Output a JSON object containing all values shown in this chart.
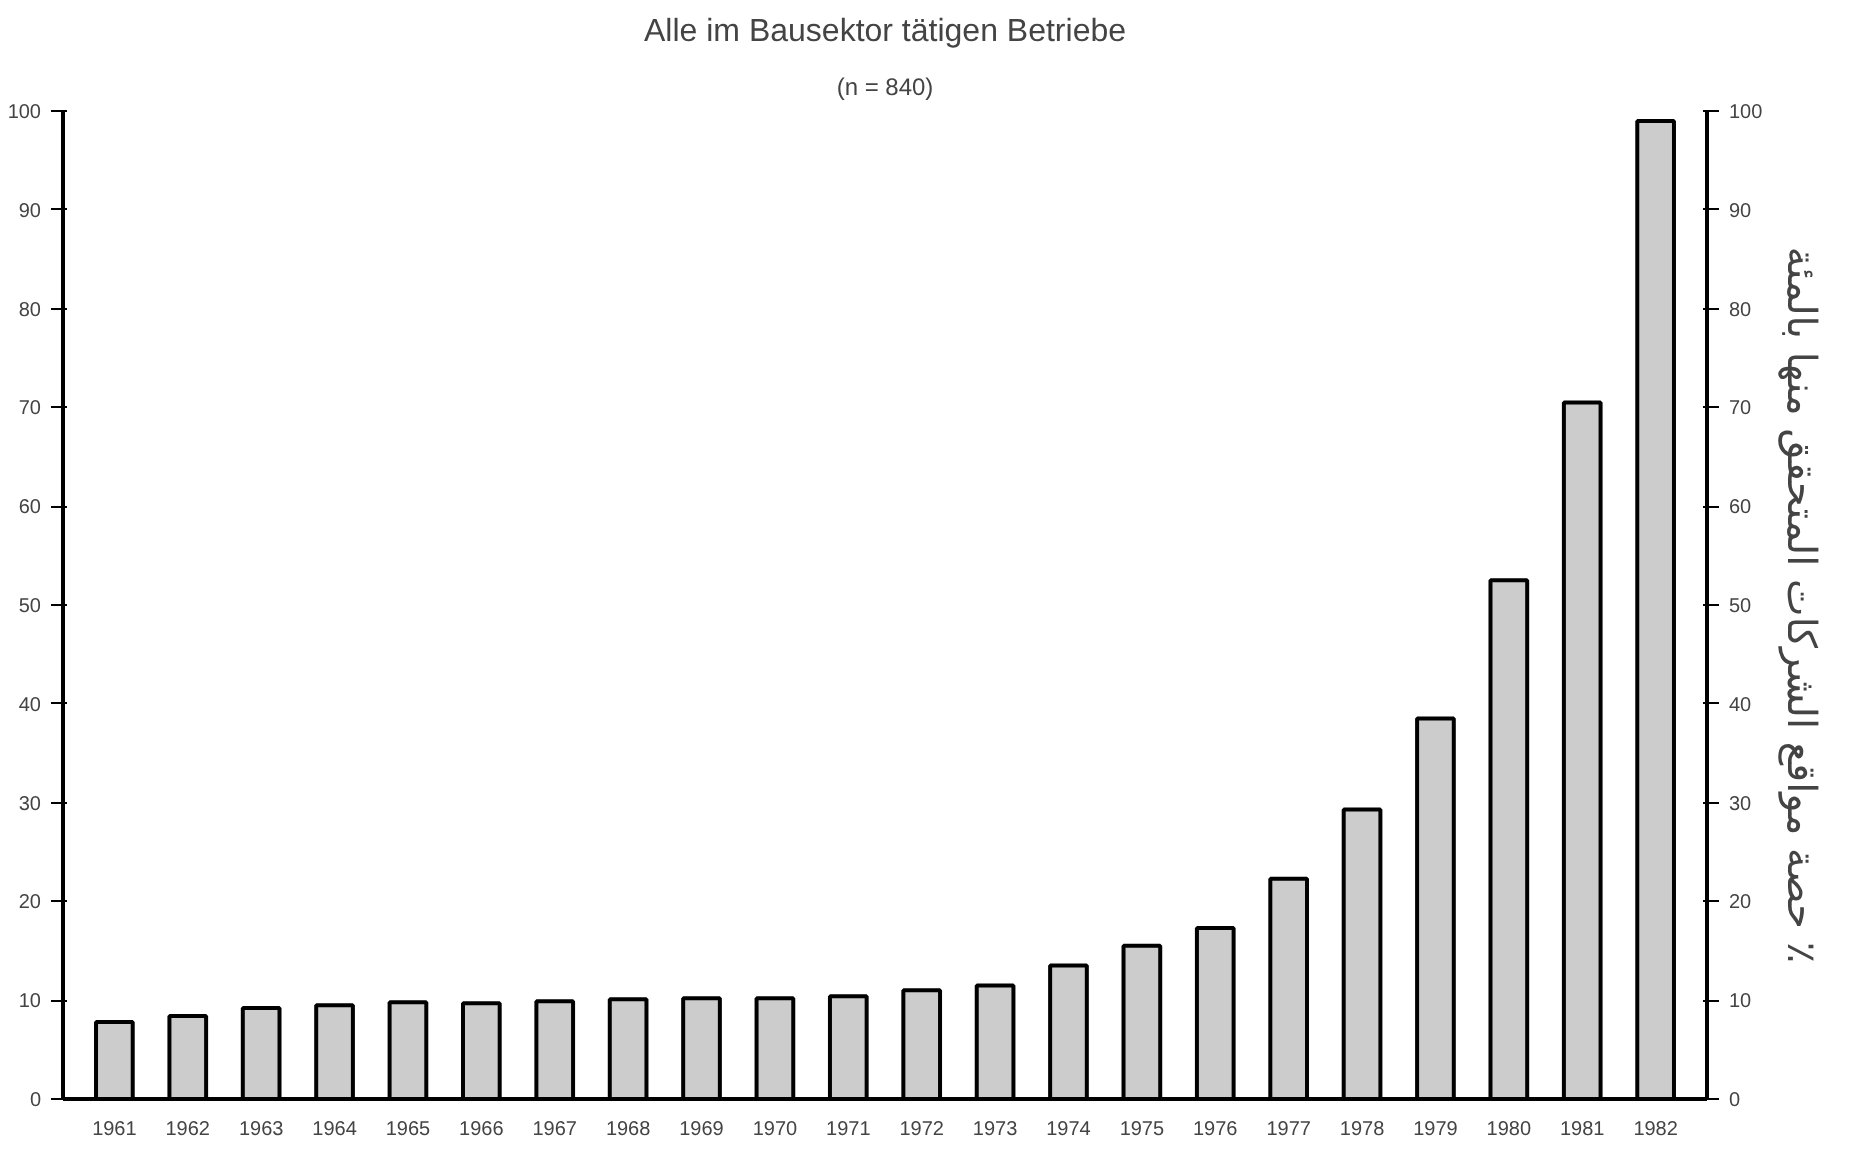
{
  "chart_data": {
    "type": "bar",
    "title": "Alle im Bausektor tätigen Betriebe",
    "subtitle": "(n = 840)",
    "y2label": "حصة مواقع الشركات المتحقق منها بالمئة ٪",
    "categories": [
      "1961",
      "1962",
      "1963",
      "1964",
      "1965",
      "1966",
      "1967",
      "1968",
      "1969",
      "1970",
      "1971",
      "1972",
      "1973",
      "1974",
      "1975",
      "1976",
      "1977",
      "1978",
      "1979",
      "1980",
      "1981",
      "1982"
    ],
    "values": [
      7.8,
      8.4,
      9.2,
      9.5,
      9.8,
      9.7,
      9.9,
      10.1,
      10.2,
      10.2,
      10.4,
      11,
      11.5,
      13.5,
      15.5,
      17.3,
      22.3,
      29.3,
      38.5,
      52.5,
      70.5,
      99
    ],
    "color": "#cccccc",
    "ylim": [
      0,
      100
    ],
    "yticks": [
      0,
      10,
      20,
      30,
      40,
      50,
      60,
      70,
      80,
      90,
      100
    ],
    "y2lim": [
      0,
      100
    ],
    "y2ticks": [
      0,
      10,
      20,
      30,
      40,
      50,
      60,
      70,
      80,
      90,
      100
    ],
    "grid": false
  }
}
